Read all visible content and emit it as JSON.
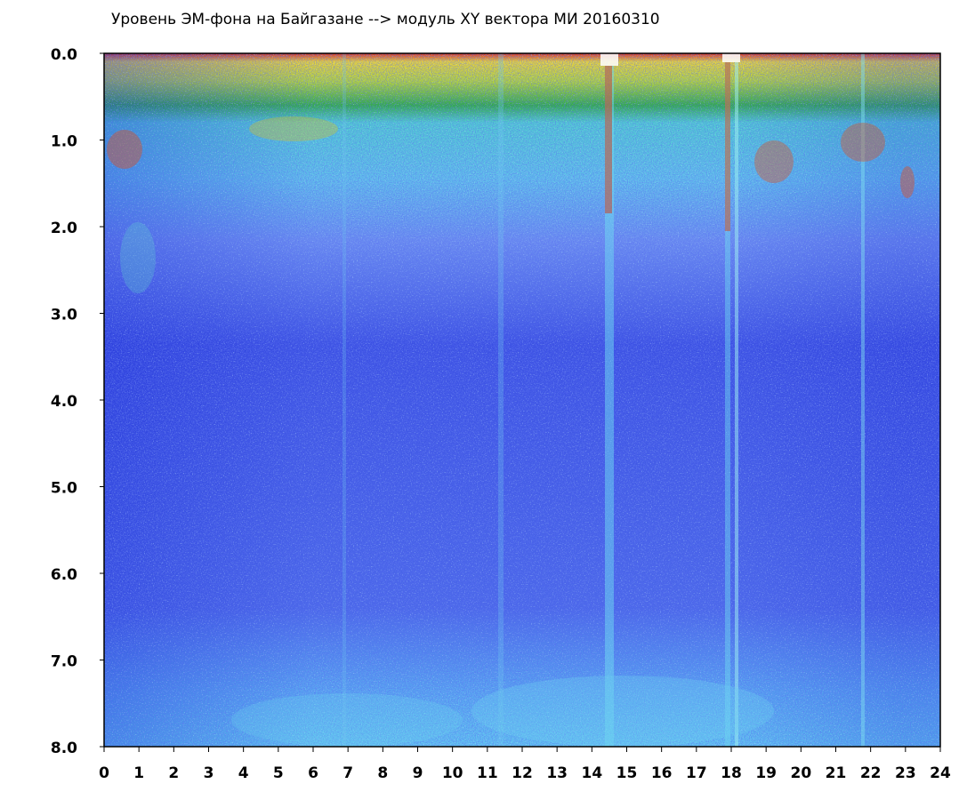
{
  "chart_data": {
    "type": "heatmap",
    "title": "Уровень ЭМ-фона на Байгазане  -->  модуль XY вектора МИ  20160310",
    "xlim": [
      0,
      24
    ],
    "xticks": [
      0,
      1,
      2,
      3,
      4,
      5,
      6,
      7,
      8,
      9,
      10,
      11,
      12,
      13,
      14,
      15,
      16,
      17,
      18,
      19,
      20,
      21,
      22,
      23,
      24
    ],
    "ylim": [
      0,
      8
    ],
    "y_inverted": true,
    "yticks": [
      {
        "value": 0,
        "label": "0.0"
      },
      {
        "value": 1,
        "label": "1.0"
      },
      {
        "value": 2,
        "label": "2.0"
      },
      {
        "value": 3,
        "label": "3.0"
      },
      {
        "value": 4,
        "label": "4.0"
      },
      {
        "value": 5,
        "label": "5.0"
      },
      {
        "value": 6,
        "label": "6.0"
      },
      {
        "value": 7,
        "label": "7.0"
      },
      {
        "value": 8,
        "label": "8.0"
      }
    ]
  }
}
